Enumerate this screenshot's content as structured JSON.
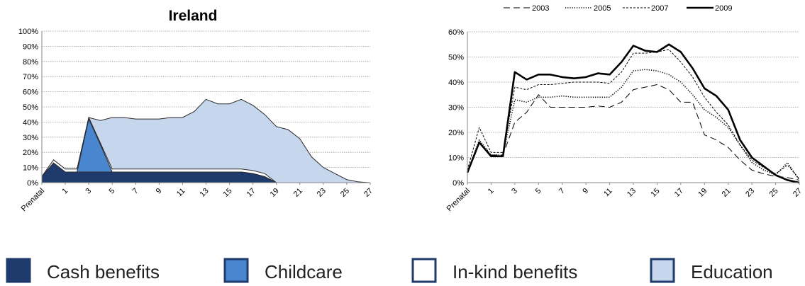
{
  "colors": {
    "cash": "#1f3b6e",
    "childcare": "#4a86cf",
    "inkind": "#ffffff",
    "education": "#c6d6ec",
    "grid": "#9a9a9a",
    "line": "#000000"
  },
  "chart_data": [
    {
      "type": "area",
      "title": "Ireland",
      "ylim": [
        0,
        100
      ],
      "y_ticks": [
        "0%",
        "10%",
        "20%",
        "30%",
        "40%",
        "50%",
        "60%",
        "70%",
        "80%",
        "90%",
        "100%"
      ],
      "x": [
        "Prenatal",
        "0",
        "1",
        "2",
        "3",
        "4",
        "5",
        "6",
        "7",
        "8",
        "9",
        "10",
        "11",
        "12",
        "13",
        "14",
        "15",
        "16",
        "17",
        "18",
        "19",
        "20",
        "21",
        "22",
        "23",
        "24",
        "25",
        "26",
        "27"
      ],
      "x_tick_labels": [
        "Prenatal",
        "1",
        "3",
        "5",
        "7",
        "9",
        "11",
        "13",
        "15",
        "17",
        "19",
        "21",
        "23",
        "25",
        "27"
      ],
      "stacking": "cumulative",
      "series": [
        {
          "name": "Cash benefits",
          "color_key": "cash",
          "values": [
            4,
            13,
            7,
            7,
            7,
            7,
            7,
            7,
            7,
            7,
            7,
            7,
            7,
            7,
            7,
            7,
            7,
            7,
            6,
            4,
            0,
            0,
            0,
            0,
            0,
            0,
            0,
            0,
            0
          ]
        },
        {
          "name": "Childcare",
          "color_key": "childcare",
          "values": [
            0,
            0,
            0,
            0,
            35,
            18,
            0,
            0,
            0,
            0,
            0,
            0,
            0,
            0,
            0,
            0,
            0,
            0,
            0,
            0,
            0,
            0,
            0,
            0,
            0,
            0,
            0,
            0,
            0
          ]
        },
        {
          "name": "In-kind benefits",
          "color_key": "inkind",
          "values": [
            0,
            2,
            2,
            2,
            1,
            1,
            2,
            2,
            2,
            2,
            2,
            2,
            2,
            2,
            2,
            2,
            2,
            2,
            2,
            2,
            0,
            0,
            0,
            0,
            0,
            0,
            0,
            0,
            0
          ]
        },
        {
          "name": "Education",
          "color_key": "education",
          "values": [
            0,
            0,
            0,
            0,
            0,
            15,
            34,
            34,
            33,
            33,
            33,
            34,
            34,
            38,
            46,
            43,
            43,
            46,
            43,
            39,
            37,
            35,
            29,
            17,
            10,
            6,
            2,
            0.5,
            0
          ]
        }
      ]
    },
    {
      "type": "line",
      "ylim": [
        0,
        60
      ],
      "y_ticks": [
        "0%",
        "10%",
        "20%",
        "30%",
        "40%",
        "50%",
        "60%"
      ],
      "x": [
        "Prenatal",
        "0",
        "1",
        "2",
        "3",
        "4",
        "5",
        "6",
        "7",
        "8",
        "9",
        "10",
        "11",
        "12",
        "13",
        "14",
        "15",
        "16",
        "17",
        "18",
        "19",
        "20",
        "21",
        "22",
        "23",
        "24",
        "25",
        "26",
        "27"
      ],
      "x_tick_labels": [
        "Prenatal",
        "1",
        "3",
        "5",
        "7",
        "9",
        "11",
        "13",
        "15",
        "17",
        "19",
        "21",
        "23",
        "25",
        "27"
      ],
      "legend_position": "top",
      "series": [
        {
          "name": "2003",
          "dash": "dashed",
          "values": [
            4,
            16,
            11,
            11,
            24,
            28,
            35,
            30,
            30,
            30,
            30,
            30.5,
            30,
            32,
            37,
            38,
            39,
            37,
            32,
            32,
            19,
            17,
            14,
            9,
            5,
            3.5,
            2.5,
            2,
            1
          ]
        },
        {
          "name": "2005",
          "dash": "dotted",
          "values": [
            4,
            17,
            11,
            11,
            33,
            32,
            34,
            34,
            34.5,
            34,
            34,
            34,
            34,
            38,
            44.5,
            45,
            44.5,
            43,
            40,
            35,
            29,
            26,
            22,
            15,
            8,
            5,
            3,
            8,
            1
          ]
        },
        {
          "name": "2007",
          "dash": "finedash",
          "values": [
            5,
            22,
            12,
            12,
            38,
            37,
            39,
            39,
            39.5,
            40,
            40,
            40,
            39.5,
            44,
            51.5,
            51.5,
            52,
            53,
            48,
            42,
            34,
            28,
            23,
            15,
            9,
            6,
            3.5,
            7,
            1.5
          ]
        },
        {
          "name": "2009",
          "dash": "solid",
          "values": [
            4,
            16,
            10.5,
            10.5,
            44,
            41,
            43,
            43,
            42,
            41.5,
            42,
            43.5,
            43,
            48,
            54.5,
            52.5,
            52,
            55,
            52,
            45.5,
            37.5,
            34.5,
            29,
            17,
            10,
            6.5,
            3,
            1,
            0
          ]
        }
      ]
    }
  ],
  "bottom_legend": [
    {
      "label": "Cash benefits",
      "color_key": "cash"
    },
    {
      "label": "Childcare",
      "color_key": "childcare"
    },
    {
      "label": "In-kind benefits",
      "color_key": "inkind"
    },
    {
      "label": "Education",
      "color_key": "education"
    }
  ]
}
